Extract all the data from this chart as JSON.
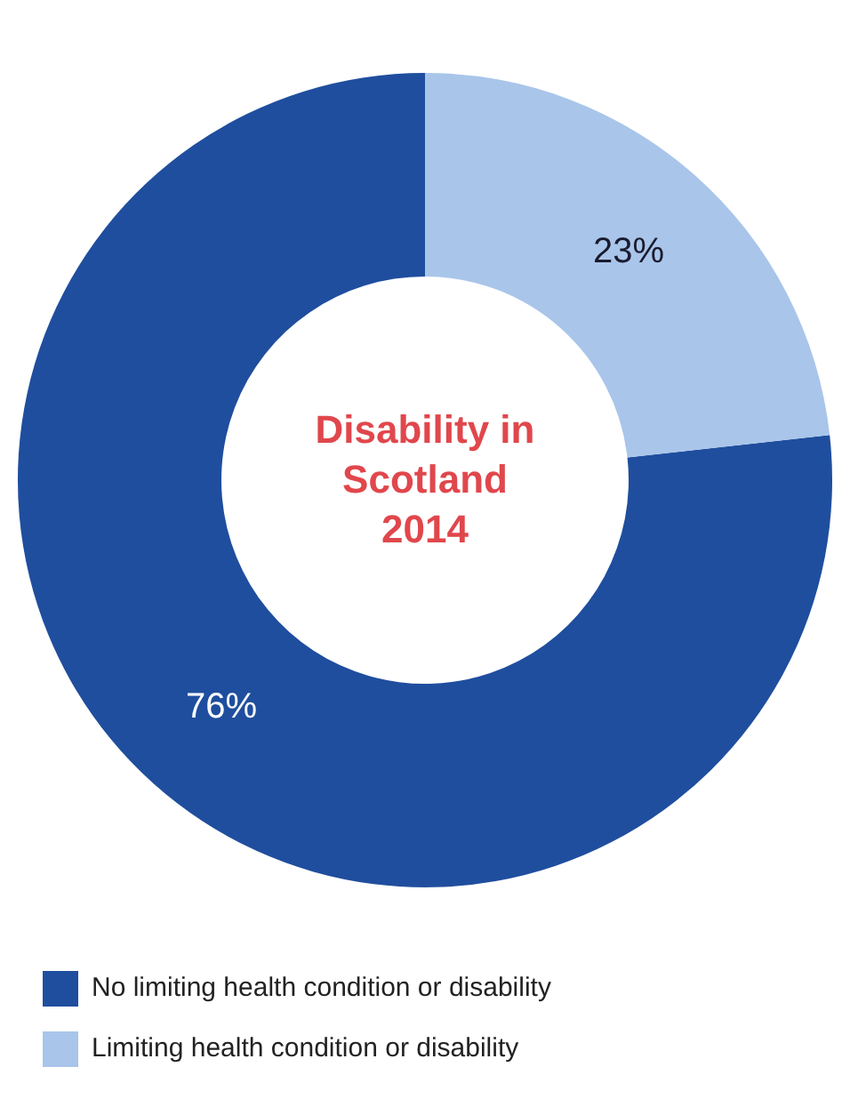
{
  "chart_data": {
    "type": "donut",
    "title": "Disability in Scotland 2014",
    "categories": [
      "No limiting health condition or disability",
      "Limiting health condition or disability"
    ],
    "values": [
      76,
      23
    ],
    "value_labels": [
      "76%",
      "23%"
    ],
    "colors": [
      "#1f4e9e",
      "#a9c5ea"
    ],
    "legend": "bottom"
  }
}
